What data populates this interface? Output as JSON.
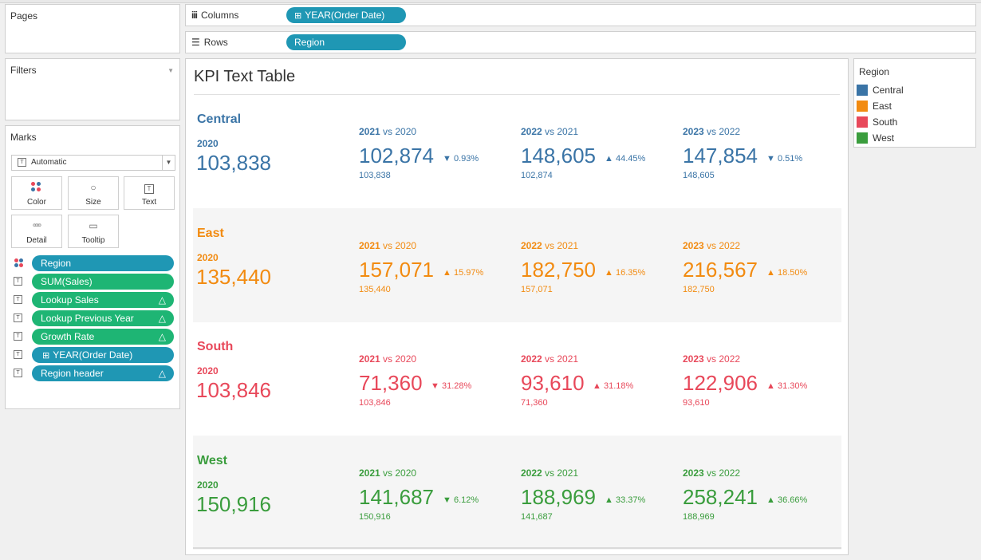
{
  "pages": {
    "title": "Pages"
  },
  "filters": {
    "title": "Filters"
  },
  "marks": {
    "title": "Marks",
    "mark_type": "Automatic",
    "buttons": [
      {
        "label": "Color",
        "icon": "color-dots-icon"
      },
      {
        "label": "Size",
        "icon": "size-icon"
      },
      {
        "label": "Text",
        "icon": "text-icon"
      },
      {
        "label": "Detail",
        "icon": "detail-dots-icon"
      },
      {
        "label": "Tooltip",
        "icon": "tooltip-icon"
      }
    ],
    "fields": [
      {
        "label": "Region",
        "type": "color",
        "pill": "blue",
        "delta": false
      },
      {
        "label": "SUM(Sales)",
        "type": "text",
        "pill": "green",
        "delta": false
      },
      {
        "label": "Lookup Sales",
        "type": "text",
        "pill": "green",
        "delta": true
      },
      {
        "label": "Lookup Previous Year",
        "type": "text",
        "pill": "green",
        "delta": true
      },
      {
        "label": "Growth Rate",
        "type": "text",
        "pill": "green",
        "delta": true
      },
      {
        "label": "YEAR(Order Date)",
        "type": "text",
        "pill": "blue",
        "delta": false
      },
      {
        "label": "Region header",
        "type": "text",
        "pill": "blue",
        "delta": true
      }
    ],
    "delta_glyph": "△"
  },
  "columns": {
    "label": "Columns",
    "pill": "YEAR(Order Date)"
  },
  "rows": {
    "label": "Rows",
    "pill": "Region"
  },
  "view": {
    "title": "KPI Text Table",
    "vs": "vs",
    "regions": [
      {
        "name": "Central",
        "color": "#3a74a6",
        "base_year": "2020",
        "base_value": "103,838",
        "comparisons": [
          {
            "year": "2021",
            "prev_year": "2020",
            "value": "102,874",
            "dir": "▼",
            "pct": "0.93%",
            "prev_value": "103,838"
          },
          {
            "year": "2022",
            "prev_year": "2021",
            "value": "148,605",
            "dir": "▲",
            "pct": "44.45%",
            "prev_value": "102,874"
          },
          {
            "year": "2023",
            "prev_year": "2022",
            "value": "147,854",
            "dir": "▼",
            "pct": "0.51%",
            "prev_value": "148,605"
          }
        ]
      },
      {
        "name": "East",
        "color": "#f28b11",
        "base_year": "2020",
        "base_value": "135,440",
        "comparisons": [
          {
            "year": "2021",
            "prev_year": "2020",
            "value": "157,071",
            "dir": "▲",
            "pct": "15.97%",
            "prev_value": "135,440"
          },
          {
            "year": "2022",
            "prev_year": "2021",
            "value": "182,750",
            "dir": "▲",
            "pct": "16.35%",
            "prev_value": "157,071"
          },
          {
            "year": "2023",
            "prev_year": "2022",
            "value": "216,567",
            "dir": "▲",
            "pct": "18.50%",
            "prev_value": "182,750"
          }
        ]
      },
      {
        "name": "South",
        "color": "#e8485a",
        "base_year": "2020",
        "base_value": "103,846",
        "comparisons": [
          {
            "year": "2021",
            "prev_year": "2020",
            "value": "71,360",
            "dir": "▼",
            "pct": "31.28%",
            "prev_value": "103,846"
          },
          {
            "year": "2022",
            "prev_year": "2021",
            "value": "93,610",
            "dir": "▲",
            "pct": "31.18%",
            "prev_value": "71,360"
          },
          {
            "year": "2023",
            "prev_year": "2022",
            "value": "122,906",
            "dir": "▲",
            "pct": "31.30%",
            "prev_value": "93,610"
          }
        ]
      },
      {
        "name": "West",
        "color": "#3a9d3d",
        "base_year": "2020",
        "base_value": "150,916",
        "comparisons": [
          {
            "year": "2021",
            "prev_year": "2020",
            "value": "141,687",
            "dir": "▼",
            "pct": "6.12%",
            "prev_value": "150,916"
          },
          {
            "year": "2022",
            "prev_year": "2021",
            "value": "188,969",
            "dir": "▲",
            "pct": "33.37%",
            "prev_value": "141,687"
          },
          {
            "year": "2023",
            "prev_year": "2022",
            "value": "258,241",
            "dir": "▲",
            "pct": "36.66%",
            "prev_value": "188,969"
          }
        ]
      }
    ]
  },
  "legend": {
    "title": "Region",
    "items": [
      {
        "label": "Central",
        "color": "#3a74a6"
      },
      {
        "label": "East",
        "color": "#f28b11"
      },
      {
        "label": "South",
        "color": "#e8485a"
      },
      {
        "label": "West",
        "color": "#3a9d3d"
      }
    ]
  }
}
